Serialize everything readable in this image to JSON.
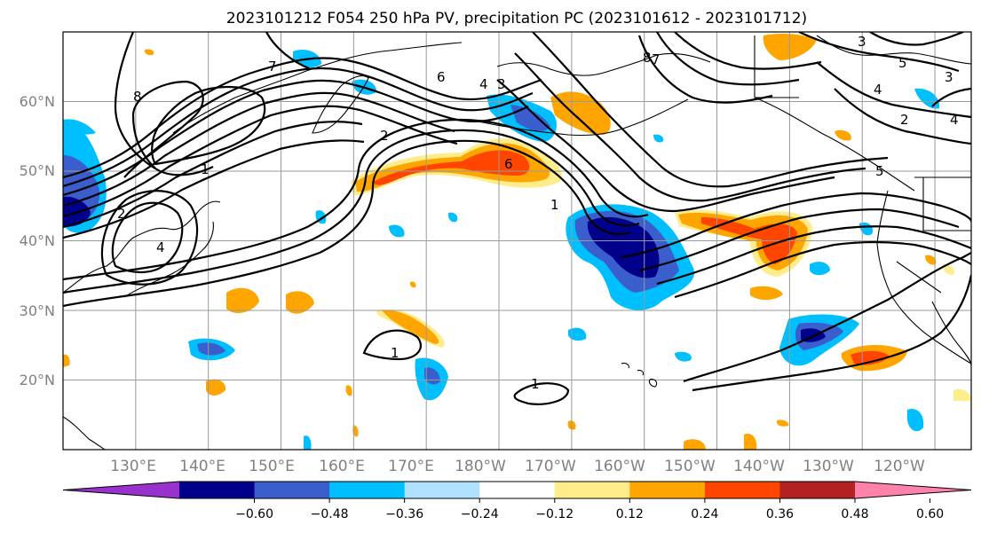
{
  "title": "2023101212 F054 250 hPa PV, precipitation PC (2023101612 - 2023101712)",
  "lat_labels": [
    "20°N",
    "30°N",
    "40°N",
    "50°N",
    "60°N"
  ],
  "lon_labels": [
    "130°E",
    "140°E",
    "150°E",
    "160°E",
    "170°E",
    "180°W",
    "170°W",
    "160°W",
    "150°W",
    "140°W",
    "130°W",
    "120°W"
  ],
  "contour_labels": [
    "1",
    "1",
    "1",
    "1",
    "2",
    "2",
    "2",
    "3",
    "3",
    "3",
    "4",
    "4",
    "4",
    "4",
    "5",
    "5",
    "6",
    "6",
    "7",
    "7",
    "8",
    "8"
  ],
  "colorbar": {
    "colors": [
      "#9932cc",
      "#00008b",
      "#3a5fcd",
      "#00bfff",
      "#b0e2ff",
      "#ffffff",
      "#ffec8b",
      "#ffa500",
      "#ff4500",
      "#b22222",
      "#ff82ab"
    ],
    "tick_labels": [
      "−0.60",
      "−0.48",
      "−0.36",
      "−0.24",
      "−0.12",
      "0.12",
      "0.24",
      "0.36",
      "0.48",
      "0.60"
    ]
  },
  "chart_data": {
    "type": "heatmap",
    "title": "2023101212 F054 250 hPa PV, precipitation PC (2023101612 - 2023101712)",
    "variables": [
      "250 hPa PV (contours)",
      "precipitation PC (shaded)"
    ],
    "lon_range_deg_east": [
      120,
      245
    ],
    "lat_range_deg_north": [
      10,
      70
    ],
    "grid": true,
    "colorbar_levels": [
      -0.6,
      -0.48,
      -0.36,
      -0.24,
      -0.12,
      0.12,
      0.24,
      0.36,
      0.48,
      0.6
    ],
    "colorbar_extend": "both",
    "colorbar_position": "bottom",
    "pv_contour_levels": [
      1,
      2,
      3,
      4,
      5,
      6,
      7,
      8
    ]
  }
}
